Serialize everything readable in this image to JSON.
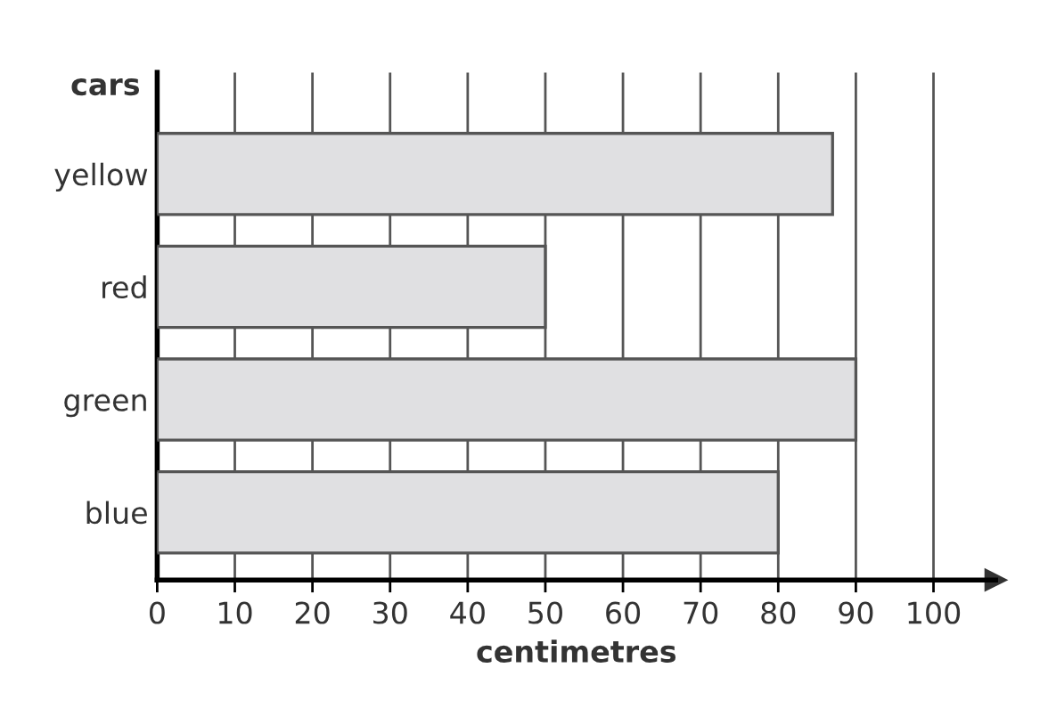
{
  "chart_data": {
    "type": "bar",
    "orientation": "horizontal",
    "ylabel": "cars",
    "xlabel": "centimetres",
    "categories": [
      "yellow",
      "red",
      "green",
      "blue"
    ],
    "values": [
      87,
      50,
      90,
      80
    ],
    "color": "#e0e0e2",
    "xlim": [
      0,
      108
    ],
    "xticks": [
      0,
      10,
      20,
      30,
      40,
      50,
      60,
      70,
      80,
      90,
      100
    ],
    "grid": "x"
  }
}
